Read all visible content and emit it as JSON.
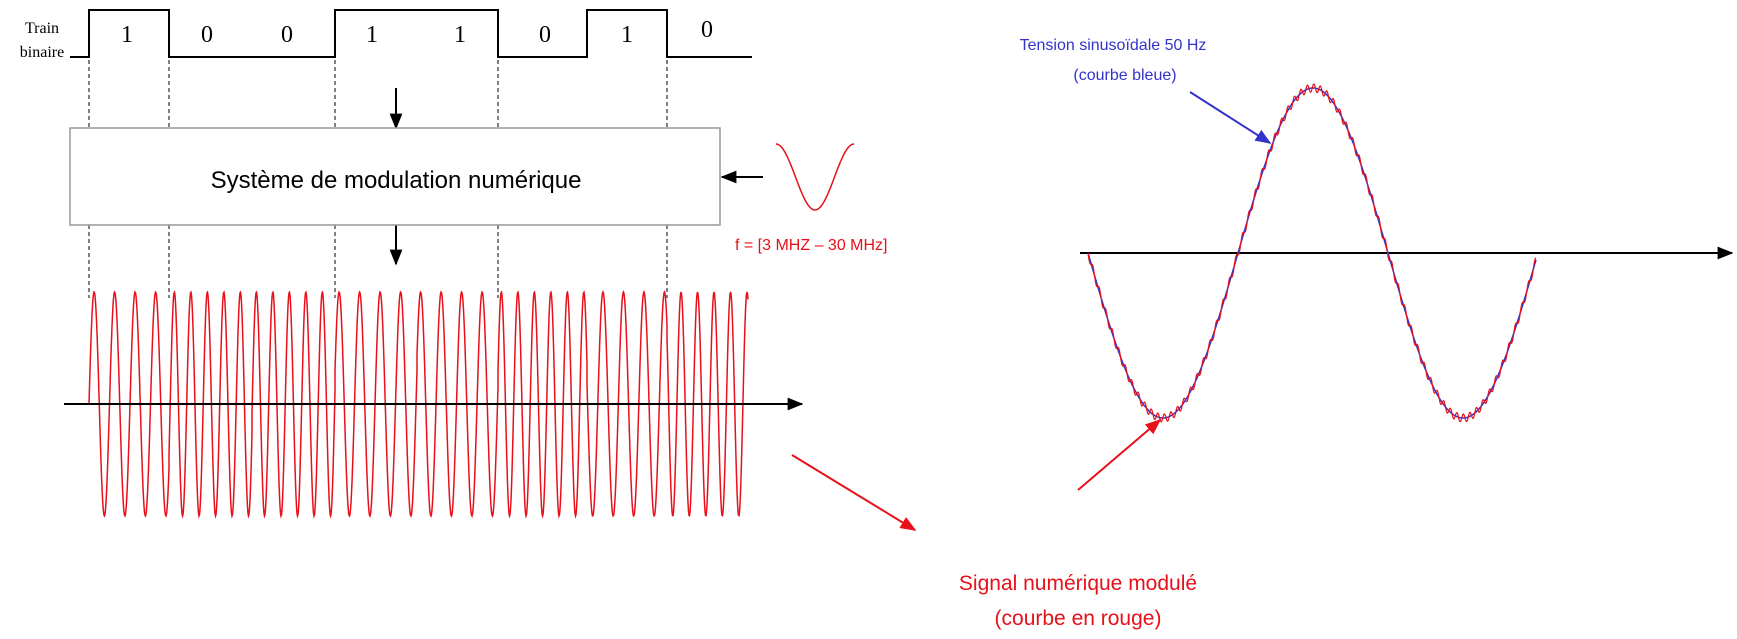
{
  "binary_train": {
    "label_line1": "Train",
    "label_line2": "binaire",
    "bits": [
      "1",
      "0",
      "0",
      "1",
      "1",
      "0",
      "1",
      "0"
    ]
  },
  "modulator": {
    "label": "Système de modulation numérique",
    "carrier_frequency": "f = [3 MHZ – 30 MHz]"
  },
  "powerline": {
    "blue_label_line1": "Tension sinusoïdale 50 Hz",
    "blue_label_line2": "(courbe bleue)"
  },
  "modulated_signal": {
    "label_line1": "Signal numérique modulé",
    "label_line2": "(courbe en rouge)"
  },
  "colors": {
    "signal": "#e8101a",
    "sine": "#3333cc",
    "axis": "#000000",
    "box_border": "#999999"
  }
}
